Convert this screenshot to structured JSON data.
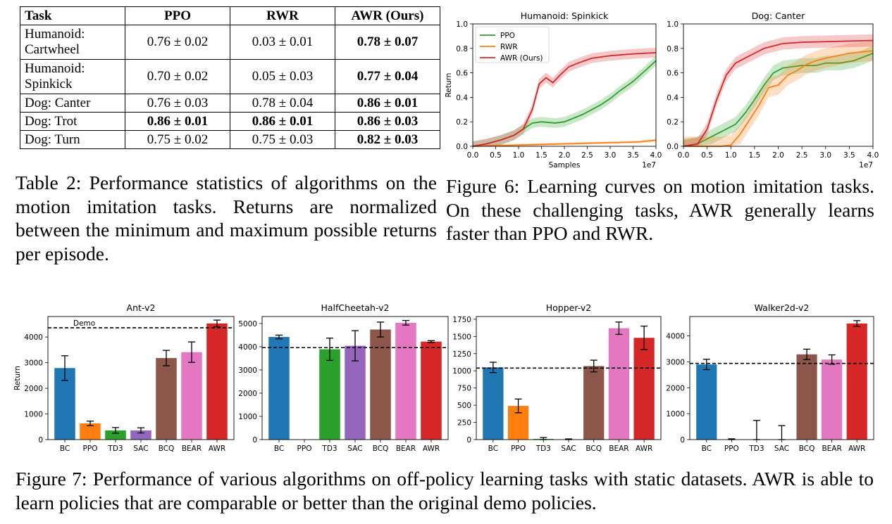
{
  "table": {
    "headers": [
      "Task",
      "PPO",
      "RWR",
      "AWR (Ours)"
    ],
    "rows": [
      {
        "task": "Humanoid: Cartwheel",
        "ppo": "0.76 ± 0.02",
        "rwr": "0.03 ± 0.01",
        "awr": "0.78 ± 0.07"
      },
      {
        "task": "Humanoid: Spinkick",
        "ppo": "0.70 ± 0.02",
        "rwr": "0.05 ± 0.03",
        "awr": "0.77 ± 0.04"
      },
      {
        "task": "Dog: Canter",
        "ppo": "0.76 ± 0.03",
        "rwr": "0.78 ± 0.04",
        "awr": "0.86 ± 0.01"
      },
      {
        "task": "Dog: Trot",
        "ppo": "0.86 ± 0.01",
        "rwr": "0.86 ± 0.01",
        "awr": "0.86 ± 0.03"
      },
      {
        "task": "Dog: Turn",
        "ppo": "0.75 ± 0.02",
        "rwr": "0.75 ± 0.03",
        "awr": "0.82 ± 0.03"
      }
    ],
    "caption": "Table 2: Performance statistics of algorithms on the motion imitation tasks. Returns are normalized between the minimum and maximum possible returns per episode."
  },
  "figure6_caption": "Figure 6: Learning curves on motion imitation tasks. On these challenging tasks, AWR generally learns faster than PPO and RWR.",
  "figure7_caption": "Figure 7: Performance of various algorithms on off-policy learning tasks with static datasets. AWR is able to learn policies that are comparable or better than the original demo policies.",
  "colors": {
    "blue": "#1f77b4",
    "orange": "#ff7f0e",
    "green": "#2ca02c",
    "red": "#d62728",
    "purple": "#9467bd",
    "brown": "#8c564b",
    "pink": "#e377c2"
  },
  "chart_data": [
    {
      "type": "line",
      "title": "Humanoid: Spinkick",
      "xlabel": "Samples",
      "ylabel": "Return",
      "x_scale_label": "1e7",
      "xlim": [
        0,
        4.0
      ],
      "ylim": [
        0,
        1.0
      ],
      "xticks": [
        "0.0",
        "0.5",
        "1.0",
        "1.5",
        "2.0",
        "2.5",
        "3.0",
        "3.5",
        "4.0"
      ],
      "yticks": [
        "0.0",
        "0.2",
        "0.4",
        "0.6",
        "0.8",
        "1.0"
      ],
      "legend": "top-left",
      "series": [
        {
          "name": "PPO",
          "color": "#2ca02c",
          "x": [
            0,
            0.3,
            0.6,
            0.9,
            1.1,
            1.3,
            1.5,
            1.8,
            2.0,
            2.2,
            2.4,
            2.6,
            2.8,
            3.0,
            3.2,
            3.5,
            3.8,
            4.0
          ],
          "y": [
            0,
            0.02,
            0.05,
            0.09,
            0.14,
            0.19,
            0.2,
            0.19,
            0.2,
            0.23,
            0.26,
            0.3,
            0.34,
            0.39,
            0.45,
            0.53,
            0.63,
            0.7
          ],
          "band": 0.04
        },
        {
          "name": "RWR",
          "color": "#ff7f0e",
          "x": [
            0,
            1.0,
            2.0,
            3.0,
            3.6,
            4.0
          ],
          "y": [
            0,
            0.01,
            0.02,
            0.03,
            0.035,
            0.05
          ],
          "band": 0.01
        },
        {
          "name": "AWR (Ours)",
          "color": "#d62728",
          "x": [
            0,
            0.3,
            0.6,
            0.9,
            1.1,
            1.3,
            1.45,
            1.6,
            1.75,
            1.9,
            2.1,
            2.3,
            2.6,
            3.0,
            3.5,
            4.0
          ],
          "y": [
            0,
            0.02,
            0.05,
            0.09,
            0.14,
            0.3,
            0.51,
            0.56,
            0.52,
            0.58,
            0.65,
            0.68,
            0.72,
            0.74,
            0.755,
            0.765
          ],
          "band": 0.04
        }
      ]
    },
    {
      "type": "line",
      "title": "Dog: Canter",
      "xlim": [
        0,
        4.0
      ],
      "ylim": [
        0,
        1.0
      ],
      "x_scale_label": "1e7",
      "xticks": [
        "0.0",
        "0.5",
        "1.0",
        "1.5",
        "2.0",
        "2.5",
        "3.0",
        "3.5",
        "4.0"
      ],
      "yticks": [
        "0.0",
        "0.2",
        "0.4",
        "0.6",
        "0.8",
        "1.0"
      ],
      "series": [
        {
          "name": "PPO",
          "color": "#2ca02c",
          "x": [
            0,
            0.3,
            0.6,
            0.9,
            1.1,
            1.3,
            1.5,
            1.7,
            1.9,
            2.1,
            2.3,
            2.5,
            2.8,
            3.0,
            3.3,
            3.6,
            4.0
          ],
          "y": [
            0,
            0.02,
            0.08,
            0.14,
            0.18,
            0.27,
            0.38,
            0.5,
            0.6,
            0.64,
            0.65,
            0.66,
            0.66,
            0.68,
            0.68,
            0.7,
            0.76
          ],
          "band": 0.06
        },
        {
          "name": "RWR",
          "color": "#ff7f0e",
          "x": [
            0,
            0.8,
            1.0,
            1.2,
            1.4,
            1.6,
            1.8,
            2.0,
            2.2,
            2.4,
            2.6,
            2.8,
            3.0,
            3.5,
            4.0
          ],
          "y": [
            0,
            0,
            0.01,
            0.1,
            0.22,
            0.34,
            0.48,
            0.5,
            0.58,
            0.62,
            0.67,
            0.7,
            0.72,
            0.76,
            0.78
          ],
          "band": 0.08
        },
        {
          "name": "AWR (Ours)",
          "color": "#d62728",
          "x": [
            0,
            0.3,
            0.5,
            0.7,
            0.9,
            1.1,
            1.3,
            1.5,
            1.7,
            1.9,
            2.1,
            2.5,
            3.0,
            3.5,
            4.0
          ],
          "y": [
            0,
            0.02,
            0.14,
            0.38,
            0.58,
            0.68,
            0.72,
            0.76,
            0.8,
            0.82,
            0.84,
            0.85,
            0.855,
            0.86,
            0.865
          ],
          "band": 0.05
        }
      ]
    },
    {
      "type": "bar",
      "title": "Ant-v2",
      "ylabel": "Return",
      "categories": [
        "BC",
        "PPO",
        "TD3",
        "SAC",
        "BCQ",
        "BEAR",
        "AWR"
      ],
      "values": [
        2790,
        630,
        360,
        360,
        3180,
        3410,
        4530
      ],
      "errors": [
        480,
        90,
        110,
        100,
        300,
        400,
        130
      ],
      "demo": 4360,
      "demo_label": "Demo",
      "ylim": [
        0,
        4800
      ],
      "yticks": [
        0,
        1000,
        2000,
        3000,
        4000
      ]
    },
    {
      "type": "bar",
      "title": "HalfCheetah-v2",
      "categories": [
        "BC",
        "PPO",
        "TD3",
        "SAC",
        "BCQ",
        "BEAR",
        "AWR"
      ],
      "values": [
        4420,
        0,
        3890,
        4040,
        4740,
        5030,
        4220
      ],
      "errors": [
        80,
        0,
        480,
        650,
        320,
        100,
        40
      ],
      "demo": 3960,
      "ylim": [
        0,
        5300
      ],
      "yticks": [
        0,
        1000,
        2000,
        3000,
        4000,
        5000
      ]
    },
    {
      "type": "bar",
      "title": "Hopper-v2",
      "categories": [
        "BC",
        "PPO",
        "TD3",
        "SAC",
        "BCQ",
        "BEAR",
        "AWR"
      ],
      "values": [
        1050,
        490,
        10,
        5,
        1070,
        1620,
        1480
      ],
      "errors": [
        75,
        100,
        20,
        5,
        85,
        90,
        170
      ],
      "demo": 1040,
      "ylim": [
        0,
        1790
      ],
      "yticks": [
        0,
        250,
        500,
        750,
        1000,
        1250,
        1500,
        1750
      ]
    },
    {
      "type": "bar",
      "title": "Walker2d-v2",
      "categories": [
        "BC",
        "PPO",
        "TD3",
        "SAC",
        "BCQ",
        "BEAR",
        "AWR"
      ],
      "values": [
        2900,
        0,
        0,
        0,
        3290,
        3090,
        4480
      ],
      "errors": [
        200,
        30,
        740,
        540,
        200,
        180,
        110
      ],
      "demo": 2940,
      "ylim": [
        0,
        4750
      ],
      "yticks": [
        0,
        1000,
        2000,
        3000,
        4000
      ]
    }
  ]
}
